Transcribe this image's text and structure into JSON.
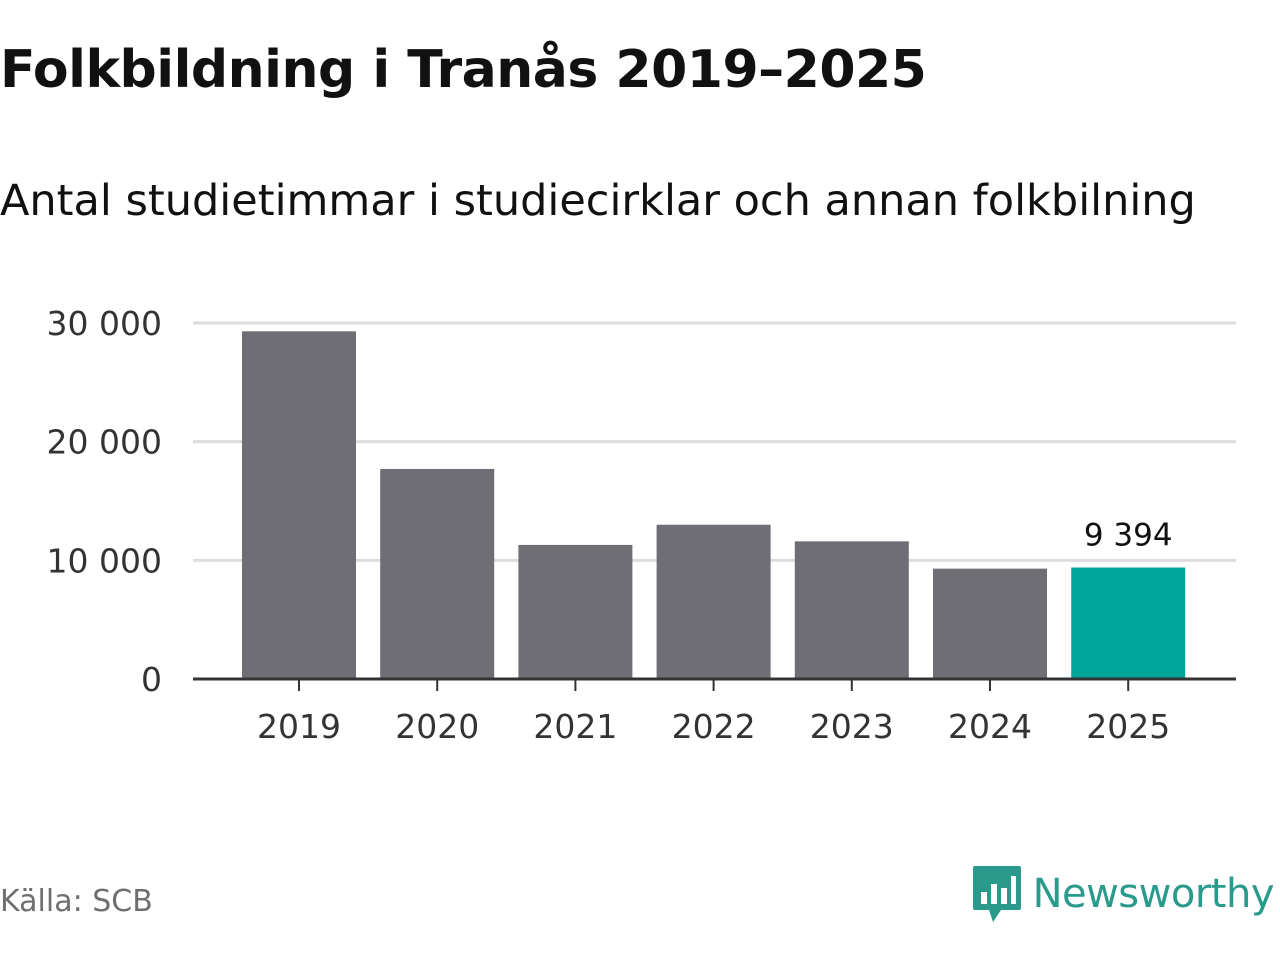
{
  "title": "Folkbildning i Tranås 2019–2025",
  "subtitle": "Antal studietimmar i studiecirklar och annan folkbilning",
  "source": "Källa: SCB",
  "brand": "Newsworthy",
  "colors": {
    "bar": "#6f6e75",
    "highlight": "#00a59a",
    "grid": "#dddddd",
    "axis": "#333333",
    "brand": "#2a9a8c"
  },
  "icons": {
    "logo": "newsworthy-logo-icon"
  },
  "chart_data": {
    "type": "bar",
    "categories": [
      "2019",
      "2020",
      "2021",
      "2022",
      "2023",
      "2024",
      "2025"
    ],
    "values": [
      29300,
      17700,
      11300,
      13000,
      11600,
      9300,
      9394
    ],
    "highlight_index": 6,
    "data_labels": [
      {
        "index": 6,
        "text": "9 394"
      }
    ],
    "ylim": [
      0,
      30000
    ],
    "yticks": [
      0,
      10000,
      20000,
      30000
    ],
    "ytick_labels": [
      "0",
      "10 000",
      "20 000",
      "30 000"
    ],
    "title": "Folkbildning i Tranås 2019–2025",
    "xlabel": "",
    "ylabel": "",
    "grid": true,
    "legend": "none"
  }
}
